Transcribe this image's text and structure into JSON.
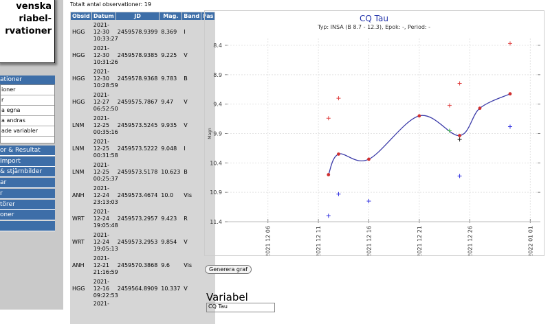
{
  "sidebar": {
    "title": [
      "venska",
      "riabel-",
      "rvationer"
    ],
    "menu_header": "ationer",
    "submenu": [
      "ioner",
      "r",
      "a egna",
      "a andras",
      "ade variabler"
    ],
    "menu": [
      "or & Resultat",
      "Import",
      "& stjärnbilder",
      "ar",
      "r",
      "törer",
      "oner"
    ]
  },
  "table": {
    "caption": "Totalt antal observationer: 19",
    "header": [
      "Obsid",
      "Datum",
      "JD",
      "Mag.",
      "Band",
      "Fas"
    ],
    "rows": [
      [
        "HGG",
        "2021-12-30 10:33:27",
        "2459578.9399",
        "8.369",
        "I"
      ],
      [
        "HGG",
        "2021-12-30 10:31:26",
        "2459578.9385",
        "9.225",
        "V"
      ],
      [
        "HGG",
        "2021-12-30 10:28:59",
        "2459578.9368",
        "9.783",
        "B"
      ],
      [
        "HGG",
        "2021-12-27 06:52:50",
        "2459575.7867",
        "9.47",
        "V"
      ],
      [
        "LNM",
        "2021-12-25 00:35:16",
        "2459573.5245",
        "9.935",
        "V"
      ],
      [
        "LNM",
        "2021-12-25 00:31:58",
        "2459573.5222",
        "9.048",
        "I"
      ],
      [
        "LNM",
        "2021-12-25 00:25:37",
        "2459573.5178",
        "10.623",
        "B"
      ],
      [
        "ANH",
        "2021-12-24 23:13:03",
        "2459573.4674",
        "10.0",
        "Vis"
      ],
      [
        "WRT",
        "2021-12-24 19:05:48",
        "2459573.2957",
        "9.423",
        "R"
      ],
      [
        "WRT",
        "2021-12-24 19:05:13",
        "2459573.2953",
        "9.854",
        "V"
      ],
      [
        "ANH",
        "2021-12-21 21:16:59",
        "2459570.3868",
        "9.6",
        "Vis"
      ],
      [
        "HGG",
        "2021-12-16 09:22:53",
        "2459564.8909",
        "10.337",
        "V"
      ]
    ],
    "partial_row": "2021-"
  },
  "chart_data": {
    "type": "scatter",
    "title": "CQ Tau",
    "subtitle": "Typ: INSA (B 8.7 - 12.3), Epok: -, Period: -",
    "y_label": "Magn",
    "grid": true,
    "xlim": [
      "2021-12-02",
      "2022-01-02"
    ],
    "xticks": [
      {
        "value": "2021-12-06",
        "label": "2021 12 06"
      },
      {
        "value": "2021-12-11",
        "label": "2021 12 11"
      },
      {
        "value": "2021-12-16",
        "label": "2021 12 16"
      },
      {
        "value": "2021-12-21",
        "label": "2021 12 21"
      },
      {
        "value": "2021-12-26",
        "label": "2021 12 26"
      },
      {
        "value": "2022-01-01",
        "label": "2022 01 01"
      }
    ],
    "ylim": [
      11.4,
      8.4
    ],
    "yticks": [
      8.4,
      8.9,
      9.4,
      9.9,
      10.4,
      10.9,
      11.4
    ],
    "series": [
      {
        "color": "#d03030",
        "marker": "dot",
        "line_color": "#3a3aa8",
        "x": [
          "2021-12-12",
          "2021-12-13",
          "2021-12-16",
          "2021-12-21",
          "2021-12-25",
          "2021-12-27",
          "2021-12-30"
        ],
        "values": [
          10.6,
          10.25,
          10.337,
          9.6,
          9.935,
          9.47,
          9.225
        ]
      },
      {
        "color": "#e04040",
        "marker": "plus",
        "x": [
          "2021-12-12",
          "2021-12-13",
          "2021-12-24",
          "2021-12-25",
          "2021-12-30"
        ],
        "values": [
          9.64,
          9.3,
          9.423,
          9.048,
          8.369
        ]
      },
      {
        "color": "#40c040",
        "marker": "plus",
        "x": [
          "2021-12-24"
        ],
        "values": [
          9.854
        ]
      },
      {
        "color": "#202020",
        "marker": "plus",
        "x": [
          "2021-12-25"
        ],
        "values": [
          10.0
        ]
      },
      {
        "color": "#3030e0",
        "marker": "plus",
        "x": [
          "2021-12-12",
          "2021-12-13",
          "2021-12-16",
          "2021-12-25",
          "2021-12-30"
        ],
        "values": [
          11.3,
          10.93,
          11.05,
          10.623,
          9.783
        ]
      }
    ]
  },
  "controls": {
    "button": "Generera graf",
    "section": "Variabel",
    "input": "CQ Tau"
  }
}
